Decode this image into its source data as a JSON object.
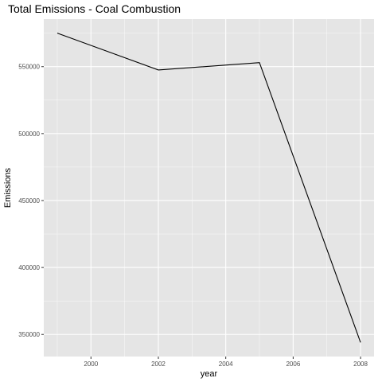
{
  "chart_data": {
    "type": "line",
    "title": "Total Emissions - Coal Combustion",
    "xlabel": "year",
    "ylabel": "Emissions",
    "x": [
      1999,
      2002,
      2005,
      2008
    ],
    "y": [
      575000,
      547500,
      553000,
      344000
    ],
    "xlim": [
      1998.6,
      2008.4
    ],
    "ylim": [
      333500,
      585500
    ],
    "xticks": [
      2000,
      2002,
      2004,
      2006,
      2008
    ],
    "yticks": [
      350000,
      400000,
      450000,
      500000,
      550000
    ],
    "xtick_labels": [
      "2000",
      "2002",
      "2004",
      "2006",
      "2008"
    ],
    "ytick_labels": [
      "350000",
      "400000",
      "450000",
      "500000",
      "550000"
    ],
    "grid": true,
    "panel_background": "#e5e5e5",
    "grid_color": "#ffffff",
    "line_color": "#000000"
  }
}
